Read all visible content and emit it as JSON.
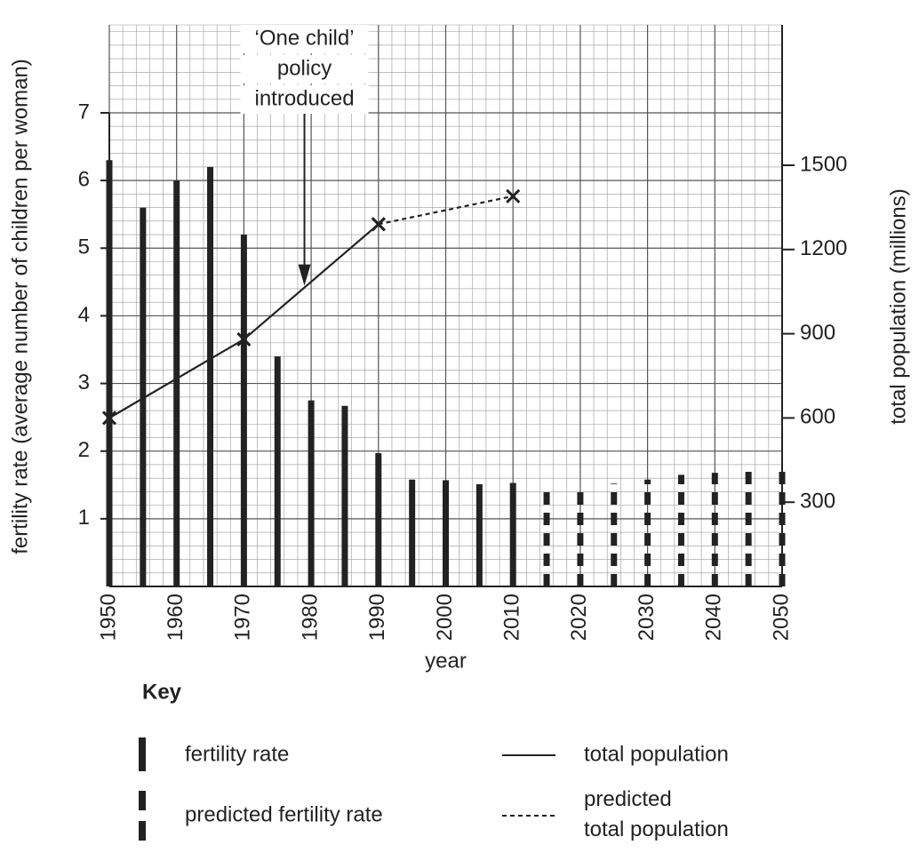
{
  "chart_data": {
    "type": "bar",
    "xlabel": "year",
    "ylabel": "fertility rate (average number of children per woman)",
    "y2label": "total population (millions)",
    "xlim": [
      1950,
      2050
    ],
    "xticks": [
      1950,
      1960,
      1970,
      1980,
      1990,
      2000,
      2010,
      2020,
      2030,
      2040,
      2050
    ],
    "ylim": [
      0,
      8.3
    ],
    "yticks": [
      1,
      2,
      3,
      4,
      5,
      6,
      7
    ],
    "y2lim": [
      0,
      2000
    ],
    "y2ticks": [
      300,
      600,
      900,
      1200,
      1500
    ],
    "grid": true,
    "color": "#222222",
    "series": [
      {
        "name": "fertility rate",
        "type": "bar",
        "dashed": false,
        "x": [
          1950,
          1955,
          1960,
          1965,
          1970,
          1975,
          1980,
          1985,
          1990,
          1995,
          2000,
          2005,
          2010
        ],
        "values": [
          6.3,
          5.6,
          6.0,
          6.2,
          5.2,
          3.4,
          2.75,
          2.67,
          1.97,
          1.58,
          1.57,
          1.51,
          1.53
        ]
      },
      {
        "name": "predicted fertility rate",
        "type": "bar",
        "dashed": true,
        "x": [
          2015,
          2020,
          2025,
          2030,
          2035,
          2040,
          2045,
          2050
        ],
        "values": [
          1.5,
          1.48,
          1.52,
          1.58,
          1.65,
          1.68,
          1.7,
          1.8
        ]
      },
      {
        "name": "total population",
        "type": "line",
        "axis": "y2",
        "dashed": false,
        "x": [
          1950,
          1970,
          1990
        ],
        "values": [
          600,
          880,
          1290
        ]
      },
      {
        "name": "predicted total population",
        "type": "line",
        "axis": "y2",
        "dashed": true,
        "x": [
          1990,
          2010
        ],
        "values": [
          1290,
          1390
        ]
      }
    ],
    "annotation": {
      "text": [
        "‘One child’",
        "policy",
        "introduced"
      ],
      "x": 1979
    },
    "legend_title": "Key"
  }
}
